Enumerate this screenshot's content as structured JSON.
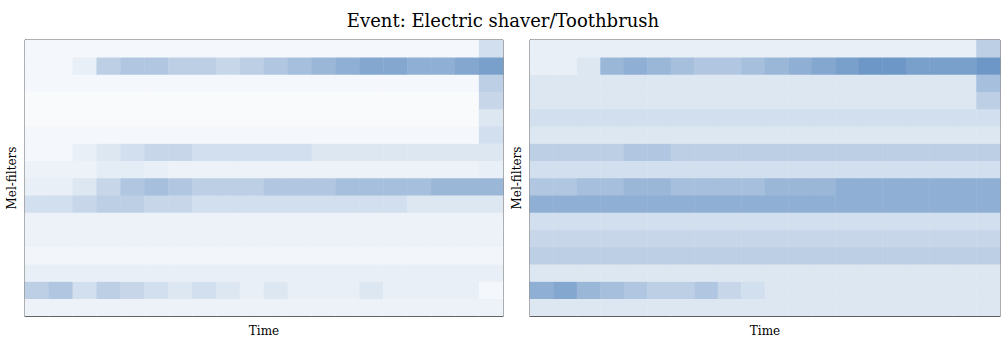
{
  "chart_data": {
    "type": "heatmap",
    "title": "Event: Electric shaver/Toothbrush",
    "tick_labels": false,
    "color": "#1f5fa8",
    "color_range": [
      0,
      1
    ],
    "panels": [
      {
        "xlabel": "Time",
        "ylabel": "Mel-filters",
        "cells": [
          [
            0.08,
            0.08,
            0.08,
            0.08,
            0.08,
            0.08,
            0.08,
            0.08,
            0.08,
            0.08,
            0.08,
            0.08,
            0.08,
            0.08,
            0.08,
            0.08,
            0.08,
            0.08,
            0.08,
            0.08
          ],
          [
            0.3,
            0.35,
            0.2,
            0.3,
            0.25,
            0.2,
            0.15,
            0.2,
            0.15,
            0.1,
            0.15,
            0.1,
            0.1,
            0.1,
            0.15,
            0.1,
            0.1,
            0.1,
            0.1,
            0.05
          ],
          [
            0.1,
            0.1,
            0.1,
            0.1,
            0.1,
            0.1,
            0.1,
            0.1,
            0.1,
            0.1,
            0.1,
            0.1,
            0.1,
            0.1,
            0.1,
            0.1,
            0.1,
            0.1,
            0.1,
            0.1
          ],
          [
            0.06,
            0.06,
            0.06,
            0.06,
            0.06,
            0.06,
            0.06,
            0.06,
            0.06,
            0.06,
            0.06,
            0.06,
            0.06,
            0.06,
            0.06,
            0.06,
            0.06,
            0.06,
            0.06,
            0.06
          ],
          [
            0.08,
            0.08,
            0.08,
            0.08,
            0.08,
            0.08,
            0.08,
            0.08,
            0.08,
            0.08,
            0.08,
            0.08,
            0.08,
            0.08,
            0.08,
            0.08,
            0.08,
            0.08,
            0.08,
            0.08
          ],
          [
            0.08,
            0.08,
            0.08,
            0.08,
            0.08,
            0.08,
            0.08,
            0.08,
            0.08,
            0.08,
            0.08,
            0.08,
            0.08,
            0.08,
            0.08,
            0.08,
            0.08,
            0.08,
            0.08,
            0.08
          ],
          [
            0.2,
            0.2,
            0.25,
            0.3,
            0.3,
            0.25,
            0.25,
            0.2,
            0.2,
            0.2,
            0.2,
            0.2,
            0.2,
            0.2,
            0.2,
            0.2,
            0.15,
            0.15,
            0.15,
            0.15
          ],
          [
            0.1,
            0.1,
            0.15,
            0.25,
            0.35,
            0.4,
            0.35,
            0.3,
            0.3,
            0.3,
            0.35,
            0.35,
            0.35,
            0.4,
            0.4,
            0.4,
            0.4,
            0.45,
            0.45,
            0.45
          ],
          [
            0.08,
            0.08,
            0.08,
            0.12,
            0.12,
            0.1,
            0.08,
            0.08,
            0.08,
            0.08,
            0.08,
            0.08,
            0.08,
            0.08,
            0.08,
            0.08,
            0.08,
            0.08,
            0.08,
            0.1
          ],
          [
            0.05,
            0.05,
            0.1,
            0.15,
            0.2,
            0.25,
            0.25,
            0.2,
            0.2,
            0.2,
            0.2,
            0.2,
            0.15,
            0.15,
            0.15,
            0.15,
            0.15,
            0.15,
            0.15,
            0.15
          ],
          [
            0.05,
            0.05,
            0.05,
            0.05,
            0.05,
            0.05,
            0.05,
            0.05,
            0.05,
            0.05,
            0.05,
            0.05,
            0.05,
            0.05,
            0.05,
            0.05,
            0.05,
            0.05,
            0.05,
            0.2
          ],
          [
            0.03,
            0.03,
            0.03,
            0.03,
            0.03,
            0.03,
            0.03,
            0.03,
            0.03,
            0.03,
            0.03,
            0.03,
            0.03,
            0.03,
            0.03,
            0.03,
            0.03,
            0.03,
            0.03,
            0.15
          ],
          [
            0.03,
            0.03,
            0.03,
            0.03,
            0.03,
            0.03,
            0.03,
            0.03,
            0.03,
            0.03,
            0.03,
            0.03,
            0.03,
            0.03,
            0.03,
            0.03,
            0.03,
            0.03,
            0.03,
            0.25
          ],
          [
            0.05,
            0.05,
            0.05,
            0.05,
            0.05,
            0.05,
            0.05,
            0.05,
            0.05,
            0.05,
            0.05,
            0.05,
            0.05,
            0.05,
            0.05,
            0.05,
            0.05,
            0.05,
            0.05,
            0.3
          ],
          [
            0.05,
            0.05,
            0.1,
            0.3,
            0.35,
            0.35,
            0.3,
            0.3,
            0.25,
            0.3,
            0.35,
            0.4,
            0.45,
            0.5,
            0.55,
            0.55,
            0.5,
            0.5,
            0.55,
            0.6
          ],
          [
            0.05,
            0.05,
            0.05,
            0.05,
            0.05,
            0.05,
            0.05,
            0.05,
            0.05,
            0.05,
            0.05,
            0.05,
            0.05,
            0.05,
            0.05,
            0.05,
            0.05,
            0.05,
            0.05,
            0.2
          ]
        ]
      },
      {
        "xlabel": "Time",
        "ylabel": "Mel-filters",
        "cells": [
          [
            0.15,
            0.15,
            0.15,
            0.15,
            0.15,
            0.15,
            0.15,
            0.15,
            0.15,
            0.15,
            0.15,
            0.15,
            0.15,
            0.15,
            0.15,
            0.15,
            0.15,
            0.15,
            0.15,
            0.15
          ],
          [
            0.5,
            0.55,
            0.45,
            0.4,
            0.35,
            0.3,
            0.3,
            0.35,
            0.25,
            0.2,
            0.15,
            0.15,
            0.15,
            0.15,
            0.15,
            0.15,
            0.15,
            0.15,
            0.15,
            0.15
          ],
          [
            0.15,
            0.15,
            0.15,
            0.15,
            0.15,
            0.15,
            0.15,
            0.15,
            0.15,
            0.15,
            0.15,
            0.15,
            0.15,
            0.15,
            0.15,
            0.15,
            0.15,
            0.15,
            0.15,
            0.15
          ],
          [
            0.3,
            0.3,
            0.3,
            0.3,
            0.3,
            0.3,
            0.3,
            0.3,
            0.3,
            0.3,
            0.3,
            0.3,
            0.3,
            0.3,
            0.3,
            0.3,
            0.3,
            0.3,
            0.3,
            0.3
          ],
          [
            0.25,
            0.25,
            0.25,
            0.25,
            0.25,
            0.25,
            0.25,
            0.25,
            0.25,
            0.25,
            0.25,
            0.25,
            0.25,
            0.25,
            0.25,
            0.25,
            0.25,
            0.25,
            0.25,
            0.25
          ],
          [
            0.2,
            0.2,
            0.2,
            0.2,
            0.2,
            0.2,
            0.2,
            0.2,
            0.2,
            0.2,
            0.2,
            0.2,
            0.2,
            0.2,
            0.2,
            0.2,
            0.2,
            0.2,
            0.2,
            0.2
          ],
          [
            0.5,
            0.5,
            0.5,
            0.5,
            0.5,
            0.5,
            0.5,
            0.5,
            0.5,
            0.5,
            0.5,
            0.5,
            0.5,
            0.5,
            0.5,
            0.5,
            0.5,
            0.5,
            0.5,
            0.5
          ],
          [
            0.35,
            0.35,
            0.4,
            0.4,
            0.45,
            0.45,
            0.4,
            0.4,
            0.4,
            0.4,
            0.45,
            0.45,
            0.45,
            0.5,
            0.5,
            0.5,
            0.5,
            0.5,
            0.5,
            0.5
          ],
          [
            0.2,
            0.2,
            0.2,
            0.2,
            0.2,
            0.2,
            0.2,
            0.2,
            0.2,
            0.2,
            0.2,
            0.2,
            0.2,
            0.2,
            0.2,
            0.2,
            0.2,
            0.2,
            0.2,
            0.2
          ],
          [
            0.3,
            0.3,
            0.3,
            0.3,
            0.35,
            0.35,
            0.3,
            0.3,
            0.3,
            0.3,
            0.3,
            0.3,
            0.3,
            0.3,
            0.3,
            0.3,
            0.3,
            0.3,
            0.3,
            0.3
          ],
          [
            0.15,
            0.15,
            0.15,
            0.15,
            0.15,
            0.15,
            0.15,
            0.15,
            0.15,
            0.15,
            0.15,
            0.15,
            0.15,
            0.15,
            0.15,
            0.15,
            0.15,
            0.15,
            0.15,
            0.15
          ],
          [
            0.2,
            0.2,
            0.2,
            0.2,
            0.2,
            0.2,
            0.2,
            0.2,
            0.2,
            0.2,
            0.2,
            0.2,
            0.2,
            0.2,
            0.2,
            0.2,
            0.2,
            0.2,
            0.2,
            0.2
          ],
          [
            0.15,
            0.15,
            0.15,
            0.15,
            0.15,
            0.15,
            0.15,
            0.15,
            0.15,
            0.15,
            0.15,
            0.15,
            0.15,
            0.15,
            0.15,
            0.15,
            0.15,
            0.15,
            0.15,
            0.3
          ],
          [
            0.15,
            0.15,
            0.15,
            0.15,
            0.15,
            0.15,
            0.15,
            0.15,
            0.15,
            0.15,
            0.15,
            0.15,
            0.15,
            0.15,
            0.15,
            0.15,
            0.15,
            0.15,
            0.15,
            0.4
          ],
          [
            0.1,
            0.1,
            0.15,
            0.45,
            0.5,
            0.45,
            0.4,
            0.35,
            0.35,
            0.4,
            0.45,
            0.5,
            0.55,
            0.6,
            0.65,
            0.65,
            0.6,
            0.6,
            0.6,
            0.65
          ],
          [
            0.1,
            0.1,
            0.1,
            0.1,
            0.1,
            0.1,
            0.1,
            0.1,
            0.1,
            0.1,
            0.1,
            0.1,
            0.1,
            0.1,
            0.1,
            0.1,
            0.1,
            0.1,
            0.1,
            0.3
          ]
        ]
      }
    ]
  }
}
